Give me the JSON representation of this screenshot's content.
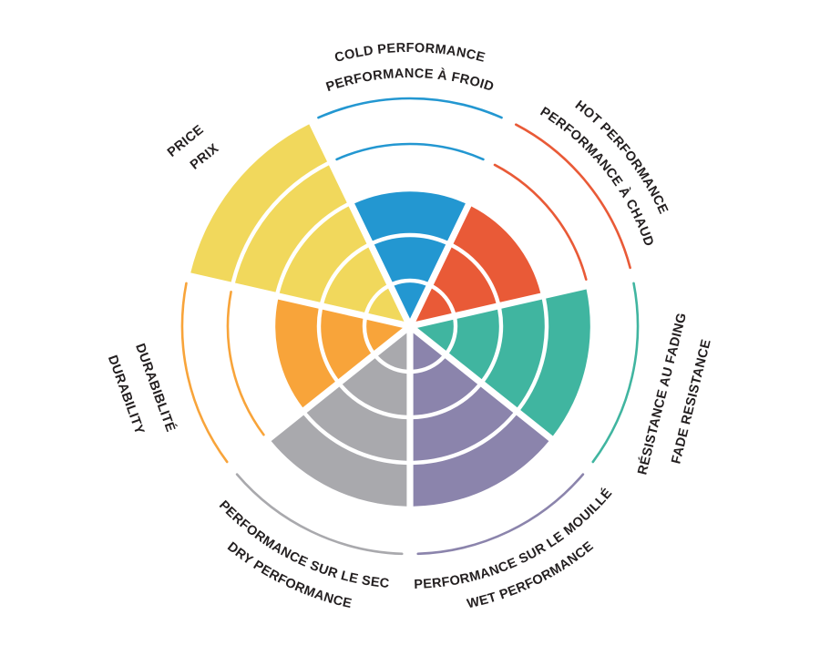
{
  "page": {
    "background": "#FFFFFF"
  },
  "chart_data": {
    "type": "pie",
    "variant": "radial-sector rating chart (rose/coxcomb): 7 equal 51.4° sectors, each filled to its rating out of 5 concentric rings; unfilled ring levels shown as thin colored arcs",
    "title": "",
    "max_rating": 5,
    "rings": 5,
    "grid": "white concentric separators and white radial gaps",
    "legend_position": "labels around perimeter, bilingual (English outer line, French inner line)",
    "background": "#FFFFFF",
    "text_color": "#231F20",
    "categories": [
      {
        "id": "cold-performance",
        "label_en": "COLD PERFORMANCE",
        "label_fr": "PERFORMANCE À FROID",
        "value": 3,
        "color": "#2397D1"
      },
      {
        "id": "hot-performance",
        "label_en": "HOT PERFORMANCE",
        "label_fr": "PERFORMANCE À CHAUD",
        "value": 3,
        "color": "#E95A37"
      },
      {
        "id": "fade-resistance",
        "label_en": "FADE RESISTANCE",
        "label_fr": "RÉSISTANCE AU FADING",
        "value": 4,
        "color": "#40B5A0"
      },
      {
        "id": "wet-performance",
        "label_en": "WET PERFORMANCE",
        "label_fr": "PERFORMANCE SUR LE MOUILLÉ",
        "value": 4,
        "color": "#8B84AC"
      },
      {
        "id": "dry-performance",
        "label_en": "DRY PERFORMANCE",
        "label_fr": "PERFORMANCE SUR LE SEC",
        "value": 4,
        "color": "#A9A9AD"
      },
      {
        "id": "durability",
        "label_en": "DURABILITY",
        "label_fr": "DURABIBLITÉ",
        "value": 3,
        "color": "#F8A43A"
      },
      {
        "id": "price",
        "label_en": "PRICE",
        "label_fr": "PRIX",
        "value": 5,
        "color": "#F1D85C"
      }
    ]
  }
}
